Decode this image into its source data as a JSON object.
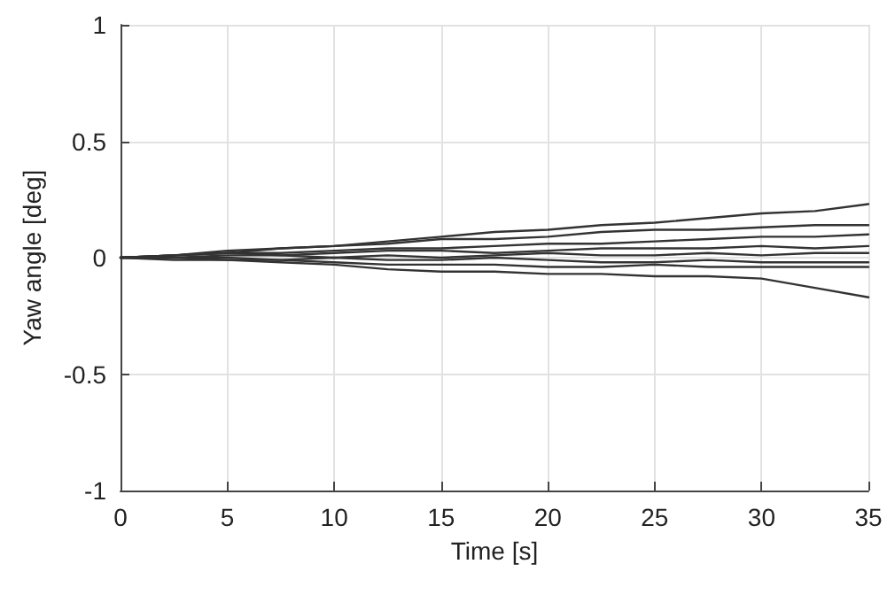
{
  "chart_data": {
    "type": "line",
    "xlabel": "Time [s]",
    "ylabel": "Yaw angle [deg]",
    "x": [
      0,
      2.5,
      5,
      7.5,
      10,
      12.5,
      15,
      17.5,
      20,
      22.5,
      25,
      27.5,
      30,
      32.5,
      35
    ],
    "series": [
      {
        "color": "#333333",
        "values": [
          0,
          0.01,
          0.03,
          0.04,
          0.05,
          0.07,
          0.09,
          0.11,
          0.12,
          0.14,
          0.15,
          0.17,
          0.19,
          0.2,
          0.23
        ]
      },
      {
        "color": "#333333",
        "values": [
          0,
          0.01,
          0.02,
          0.04,
          0.05,
          0.06,
          0.08,
          0.08,
          0.09,
          0.11,
          0.12,
          0.12,
          0.13,
          0.14,
          0.14
        ]
      },
      {
        "color": "#333333",
        "values": [
          0,
          0.01,
          0.02,
          0.02,
          0.03,
          0.04,
          0.04,
          0.05,
          0.06,
          0.06,
          0.07,
          0.08,
          0.09,
          0.09,
          0.1
        ]
      },
      {
        "color": "#333333",
        "values": [
          0,
          0.01,
          0.02,
          0.01,
          0.02,
          0.03,
          0.03,
          0.02,
          0.03,
          0.04,
          0.04,
          0.04,
          0.05,
          0.04,
          0.05
        ]
      },
      {
        "color": "#333333",
        "values": [
          0,
          0.0,
          0.01,
          0.01,
          0.0,
          0.01,
          0.0,
          0.01,
          0.02,
          0.01,
          0.01,
          0.02,
          0.01,
          0.02,
          0.02
        ]
      },
      {
        "color": "#333333",
        "values": [
          0,
          0.0,
          0.0,
          -0.01,
          0.0,
          -0.01,
          -0.01,
          0.0,
          -0.01,
          -0.02,
          -0.02,
          -0.01,
          -0.02,
          -0.02,
          -0.02
        ]
      },
      {
        "color": "#333333",
        "values": [
          0,
          0.0,
          -0.01,
          -0.01,
          -0.02,
          -0.03,
          -0.03,
          -0.03,
          -0.04,
          -0.04,
          -0.03,
          -0.04,
          -0.04,
          -0.04,
          -0.04
        ]
      },
      {
        "color": "#333333",
        "values": [
          0,
          -0.01,
          -0.01,
          -0.02,
          -0.03,
          -0.05,
          -0.06,
          -0.06,
          -0.07,
          -0.07,
          -0.08,
          -0.08,
          -0.09,
          -0.13,
          -0.17
        ]
      }
    ],
    "xlim": [
      0,
      35
    ],
    "xticks": [
      0,
      5,
      10,
      15,
      20,
      25,
      30,
      35
    ],
    "ylim": [
      -1,
      1
    ],
    "yticks": [
      -1,
      -0.5,
      0,
      0.5,
      1
    ],
    "grid": true,
    "marker": "none",
    "line_style": "solid"
  }
}
